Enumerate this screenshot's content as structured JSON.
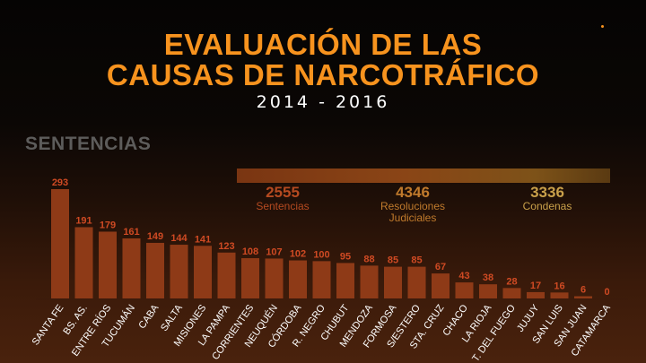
{
  "header": {
    "title_line1": "EVALUACIÓN DE LAS",
    "title_line2": "CAUSAS DE NARCOTRÁFICO",
    "years": "2014 - 2016"
  },
  "section_label": "SENTENCIAS",
  "totals": [
    {
      "value": "2555",
      "label": "Sentencias"
    },
    {
      "value": "4346",
      "label": "Resoluciones Judiciales"
    },
    {
      "value": "3336",
      "label": "Condenas"
    }
  ],
  "colors": {
    "title": "#f7931e",
    "bar": "#8e3a17",
    "value_label": "#cf4a23",
    "category_label": "#ffffff",
    "stat_sentencias": "#b54a20",
    "stat_resoluciones": "#c07a2c",
    "stat_condenas": "#c9a04a"
  },
  "chart_data": {
    "type": "bar",
    "title": "",
    "xlabel": "",
    "ylabel": "",
    "ylim": [
      0,
      293
    ],
    "grid": false,
    "legend": "none",
    "categories": [
      "SANTA FE",
      "BS. AS.",
      "ENTRE RÍOS",
      "TUCUMÁN",
      "CABA",
      "SALTA",
      "MISIONES",
      "LA PAMPA",
      "CORRIENTES",
      "NEUQUÉN",
      "CÓRDOBA",
      "R. NEGRO",
      "CHUBUT",
      "MENDOZA",
      "FORMOSA",
      "S/ESTERO",
      "STA. CRUZ",
      "CHACO",
      "LA RIOJA",
      "T. DEL FUEGO",
      "JUJUY",
      "SAN LUIS",
      "SAN JUAN",
      "CATAMARCA"
    ],
    "values": [
      293,
      191,
      179,
      161,
      149,
      144,
      141,
      123,
      108,
      107,
      102,
      100,
      95,
      88,
      85,
      85,
      67,
      43,
      38,
      28,
      17,
      16,
      6,
      0
    ]
  }
}
